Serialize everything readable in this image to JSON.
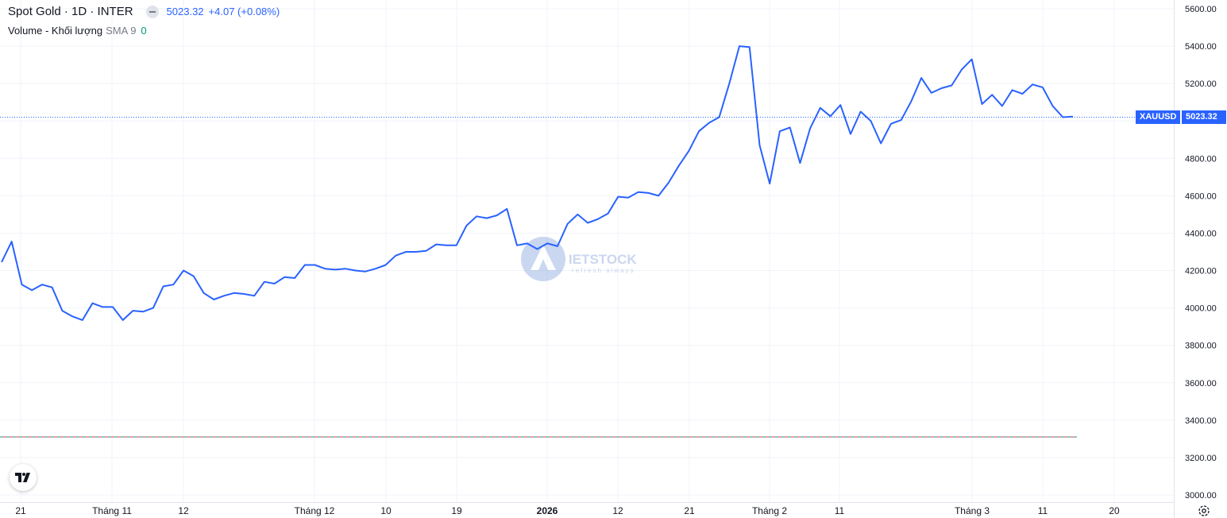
{
  "header": {
    "title": "Spot Gold · 1D · INTER",
    "price": "5023.32",
    "change": "+4.07 (+0.08%)"
  },
  "volume": {
    "name": "Volume - Khối lượng",
    "params": "SMA 9",
    "value": "0"
  },
  "price_tag": {
    "symbol": "XAUUSD",
    "value": "5023.32"
  },
  "watermark": {
    "brand": "IETSTOCK",
    "tagline": "refresh always"
  },
  "colors": {
    "line": "#2962ff",
    "grid": "#f0f3fa",
    "axis_text": "#131722",
    "tag": "#2962ff",
    "dashed_up": "#089981",
    "dashed_down": "#f23645"
  },
  "chart_data": {
    "type": "line",
    "series": [
      {
        "values": [
          4245,
          4355,
          4125,
          4095,
          4125,
          4110,
          3985,
          3955,
          3935,
          4025,
          4005,
          4005,
          3935,
          3985,
          3980,
          4000,
          4115,
          4125,
          4200,
          4170,
          4080,
          4045,
          4065,
          4080,
          4075,
          4065,
          4140,
          4130,
          4165,
          4160,
          4230,
          4230,
          4210,
          4205,
          4210,
          4200,
          4195,
          4210,
          4230,
          4280,
          4300,
          4300,
          4305,
          4340,
          4335,
          4335,
          4440,
          4490,
          4480,
          4495,
          4530,
          4335,
          4345,
          4315,
          4345,
          4330,
          4450,
          4500,
          4455,
          4475,
          4505,
          4595,
          4590,
          4620,
          4615,
          4600,
          4670,
          4760,
          4840,
          4945,
          4990,
          5020,
          5200,
          5400,
          5395,
          4870,
          4665,
          4945,
          4965,
          4775,
          4960,
          5070,
          5025,
          5085,
          4930,
          5050,
          5000,
          4880,
          4985,
          5005,
          5105,
          5230,
          5150,
          5175,
          5190,
          5275,
          5330,
          5090,
          5140,
          5080,
          5165,
          5145,
          5195,
          5180,
          5080,
          5020,
          5023.32
        ]
      }
    ],
    "ylim": [
      3000,
      5600
    ],
    "y_ticks": [
      "5600.00",
      "5400.00",
      "5200.00",
      "5000.00",
      "4800.00",
      "4600.00",
      "4400.00",
      "4200.00",
      "4000.00",
      "3800.00",
      "3600.00",
      "3400.00",
      "3200.00",
      "3000.00"
    ],
    "x_ticks": [
      "21",
      "Tháng 11",
      "12",
      "Tháng 12",
      "10",
      "19",
      "2026",
      "12",
      "21",
      "Tháng 2",
      "11",
      "Tháng 3",
      "11",
      "20"
    ],
    "x_ticks_bold": [
      "2026"
    ],
    "reference_line": 3310,
    "last_price": 5023.32,
    "grid": true
  }
}
